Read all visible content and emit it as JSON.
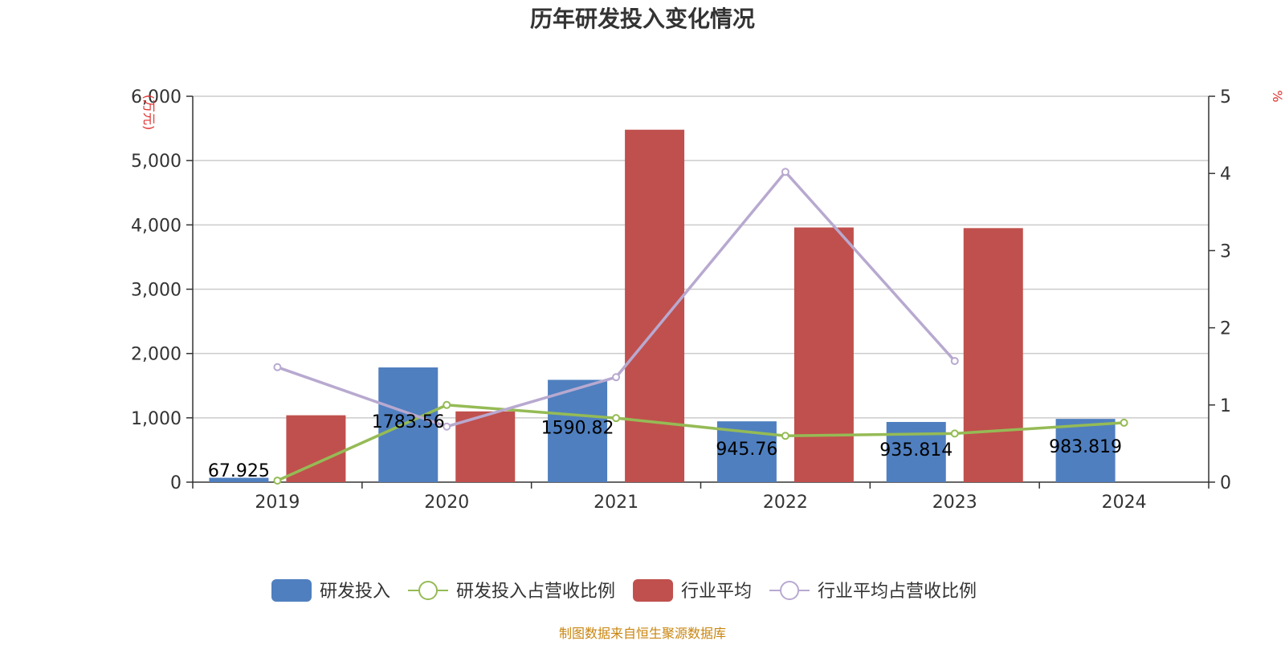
{
  "chart_data": {
    "type": "bar",
    "title": "历年研发投入变化情况",
    "categories": [
      "2019",
      "2020",
      "2021",
      "2022",
      "2023",
      "2024"
    ],
    "y_left": {
      "unit_label": "(万元)",
      "ylim": [
        0,
        6000
      ],
      "ticks": [
        "0",
        "1,000",
        "2,000",
        "3,000",
        "4,000",
        "5,000",
        "6,000"
      ],
      "tick_values": [
        0,
        1000,
        2000,
        3000,
        4000,
        5000,
        6000
      ]
    },
    "y_right": {
      "unit_label": "%",
      "ylim": [
        0,
        5
      ],
      "ticks": [
        "0",
        "1",
        "2",
        "3",
        "4",
        "5"
      ],
      "tick_values": [
        0,
        1,
        2,
        3,
        4,
        5
      ]
    },
    "grid": true,
    "legend_position": "bottom-center",
    "series": [
      {
        "name": "研发投入",
        "type": "bar",
        "axis": "left",
        "color": "#4f7fbf",
        "values": [
          67.925,
          1783.56,
          1590.82,
          945.76,
          935.814,
          983.819
        ],
        "labels": [
          "67.925",
          "1783.56",
          "1590.82",
          "945.76",
          "935.814",
          "983.819"
        ]
      },
      {
        "name": "研发投入占营收比例",
        "type": "line",
        "axis": "right",
        "color": "#95bb55",
        "values": [
          0.02,
          1.0,
          0.83,
          0.6,
          0.63,
          0.77
        ]
      },
      {
        "name": "行业平均",
        "type": "bar",
        "axis": "left",
        "color": "#c0504d",
        "values": [
          1040,
          1100,
          5480,
          3960,
          3950,
          null
        ]
      },
      {
        "name": "行业平均占营收比例",
        "type": "line",
        "axis": "right",
        "color": "#b8a9d0",
        "values": [
          1.49,
          0.72,
          1.36,
          4.02,
          1.57,
          null
        ]
      }
    ]
  },
  "footer": {
    "source": "制图数据来自恒生聚源数据库"
  }
}
